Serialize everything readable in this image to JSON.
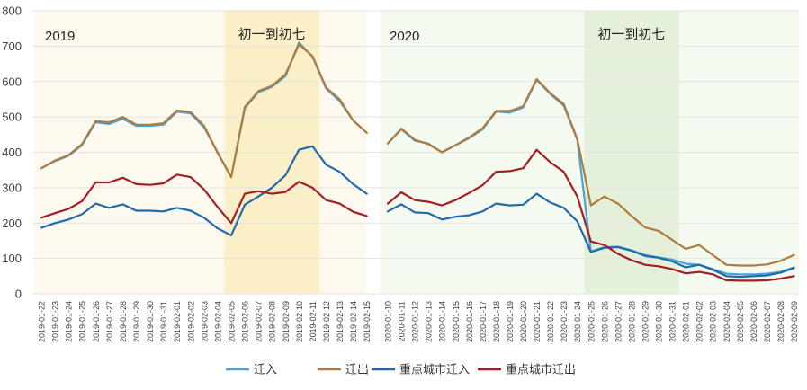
{
  "chart_data": {
    "type": "line",
    "title": "",
    "xlabel": "",
    "ylabel": "",
    "ylim": [
      0,
      800
    ],
    "yticks": [
      0,
      100,
      200,
      300,
      400,
      500,
      600,
      700,
      800
    ],
    "grid": "horizontal",
    "legend_position": "bottom",
    "panels": [
      {
        "year_label": "2019",
        "band_label": "初一到初七",
        "band_range": [
          "2019-02-05",
          "2019-02-11"
        ],
        "band_color": "#fbefc8",
        "background_color": "#fdf9ee",
        "x": [
          "2019-01-22",
          "2019-01-23",
          "2019-01-24",
          "2019-01-25",
          "2019-01-26",
          "2019-01-27",
          "2019-01-28",
          "2019-01-29",
          "2019-01-30",
          "2019-01-31",
          "2019-02-01",
          "2019-02-02",
          "2019-02-03",
          "2019-02-04",
          "2019-02-05",
          "2019-02-06",
          "2019-02-07",
          "2019-02-08",
          "2019-02-09",
          "2019-02-10",
          "2019-02-11",
          "2019-02-12",
          "2019-02-13",
          "2019-02-14",
          "2019-02-15"
        ],
        "series": [
          {
            "name": "迁入",
            "values": [
              355,
              375,
              390,
              420,
              485,
              480,
              495,
              475,
              475,
              478,
              515,
              510,
              470,
              400,
              330,
              525,
              570,
              585,
              615,
              710,
              670,
              580,
              545,
              490,
              455
            ]
          },
          {
            "name": "迁出",
            "values": [
              355,
              377,
              392,
              423,
              488,
              485,
              500,
              478,
              478,
              482,
              518,
              514,
              475,
              398,
              330,
              528,
              573,
              588,
              620,
              705,
              672,
              583,
              550,
              490,
              455
            ]
          },
          {
            "name": "重点城市迁入",
            "values": [
              187,
              200,
              210,
              225,
              255,
              243,
              253,
              235,
              235,
              233,
              243,
              235,
              215,
              185,
              165,
              252,
              275,
              300,
              335,
              407,
              417,
              365,
              345,
              310,
              283
            ]
          },
          {
            "name": "重点城市迁出",
            "values": [
              215,
              228,
              240,
              262,
              315,
              315,
              328,
              310,
              308,
              312,
              337,
              330,
              295,
              245,
              200,
              283,
              290,
              283,
              288,
              317,
              300,
              265,
              255,
              232,
              220
            ]
          }
        ]
      },
      {
        "year_label": "2020",
        "band_label": "初一到初七",
        "band_range": [
          "2020-01-25",
          "2020-01-31"
        ],
        "band_color": "#e4f0da",
        "background_color": "#f5faf1",
        "x": [
          "2020-01-10",
          "2020-01-11",
          "2020-01-12",
          "2020-01-13",
          "2020-01-14",
          "2020-01-15",
          "2020-01-16",
          "2020-01-17",
          "2020-01-18",
          "2020-01-19",
          "2020-01-20",
          "2020-01-21",
          "2020-01-22",
          "2020-01-23",
          "2020-01-24",
          "2020-01-25",
          "2020-01-26",
          "2020-01-27",
          "2020-01-28",
          "2020-01-29",
          "2020-01-30",
          "2020-01-31",
          "2020-02-01",
          "2020-02-02",
          "2020-02-03",
          "2020-02-04",
          "2020-02-05",
          "2020-02-06",
          "2020-02-07",
          "2020-02-08",
          "2020-02-09"
        ],
        "series": [
          {
            "name": "迁入",
            "values": [
              425,
              465,
              433,
              425,
              400,
              420,
              440,
              465,
              515,
              512,
              527,
              605,
              565,
              532,
              435,
              120,
              132,
              133,
              123,
              110,
              103,
              97,
              85,
              82,
              70,
              57,
              55,
              55,
              57,
              62,
              75
            ]
          },
          {
            "name": "迁出",
            "values": [
              425,
              467,
              435,
              423,
              400,
              420,
              442,
              468,
              517,
              517,
              530,
              607,
              567,
              537,
              437,
              250,
              275,
              255,
              220,
              188,
              178,
              153,
              127,
              138,
              110,
              82,
              80,
              80,
              83,
              93,
              110
            ]
          },
          {
            "name": "重点城市迁入",
            "values": [
              233,
              253,
              230,
              228,
              210,
              218,
              222,
              233,
              255,
              250,
              252,
              283,
              258,
              243,
              205,
              118,
              130,
              132,
              122,
              107,
              102,
              92,
              75,
              82,
              68,
              50,
              48,
              50,
              52,
              60,
              73
            ]
          },
          {
            "name": "重点城市迁出",
            "values": [
              255,
              287,
              265,
              260,
              250,
              265,
              285,
              307,
              345,
              347,
              355,
              407,
              372,
              345,
              275,
              148,
              138,
              113,
              95,
              82,
              78,
              70,
              58,
              62,
              55,
              38,
              37,
              37,
              38,
              43,
              50
            ]
          }
        ]
      }
    ],
    "legend": [
      {
        "name": "迁入",
        "color": "#4aa3d3"
      },
      {
        "name": "迁出",
        "color": "#b07a3f"
      },
      {
        "name": "重点城市迁入",
        "color": "#1f6bad"
      },
      {
        "name": "重点城市迁出",
        "color": "#a31e22"
      }
    ],
    "colors": {
      "grid": "#e3e3e3",
      "axis": "#cfcfcf"
    }
  }
}
